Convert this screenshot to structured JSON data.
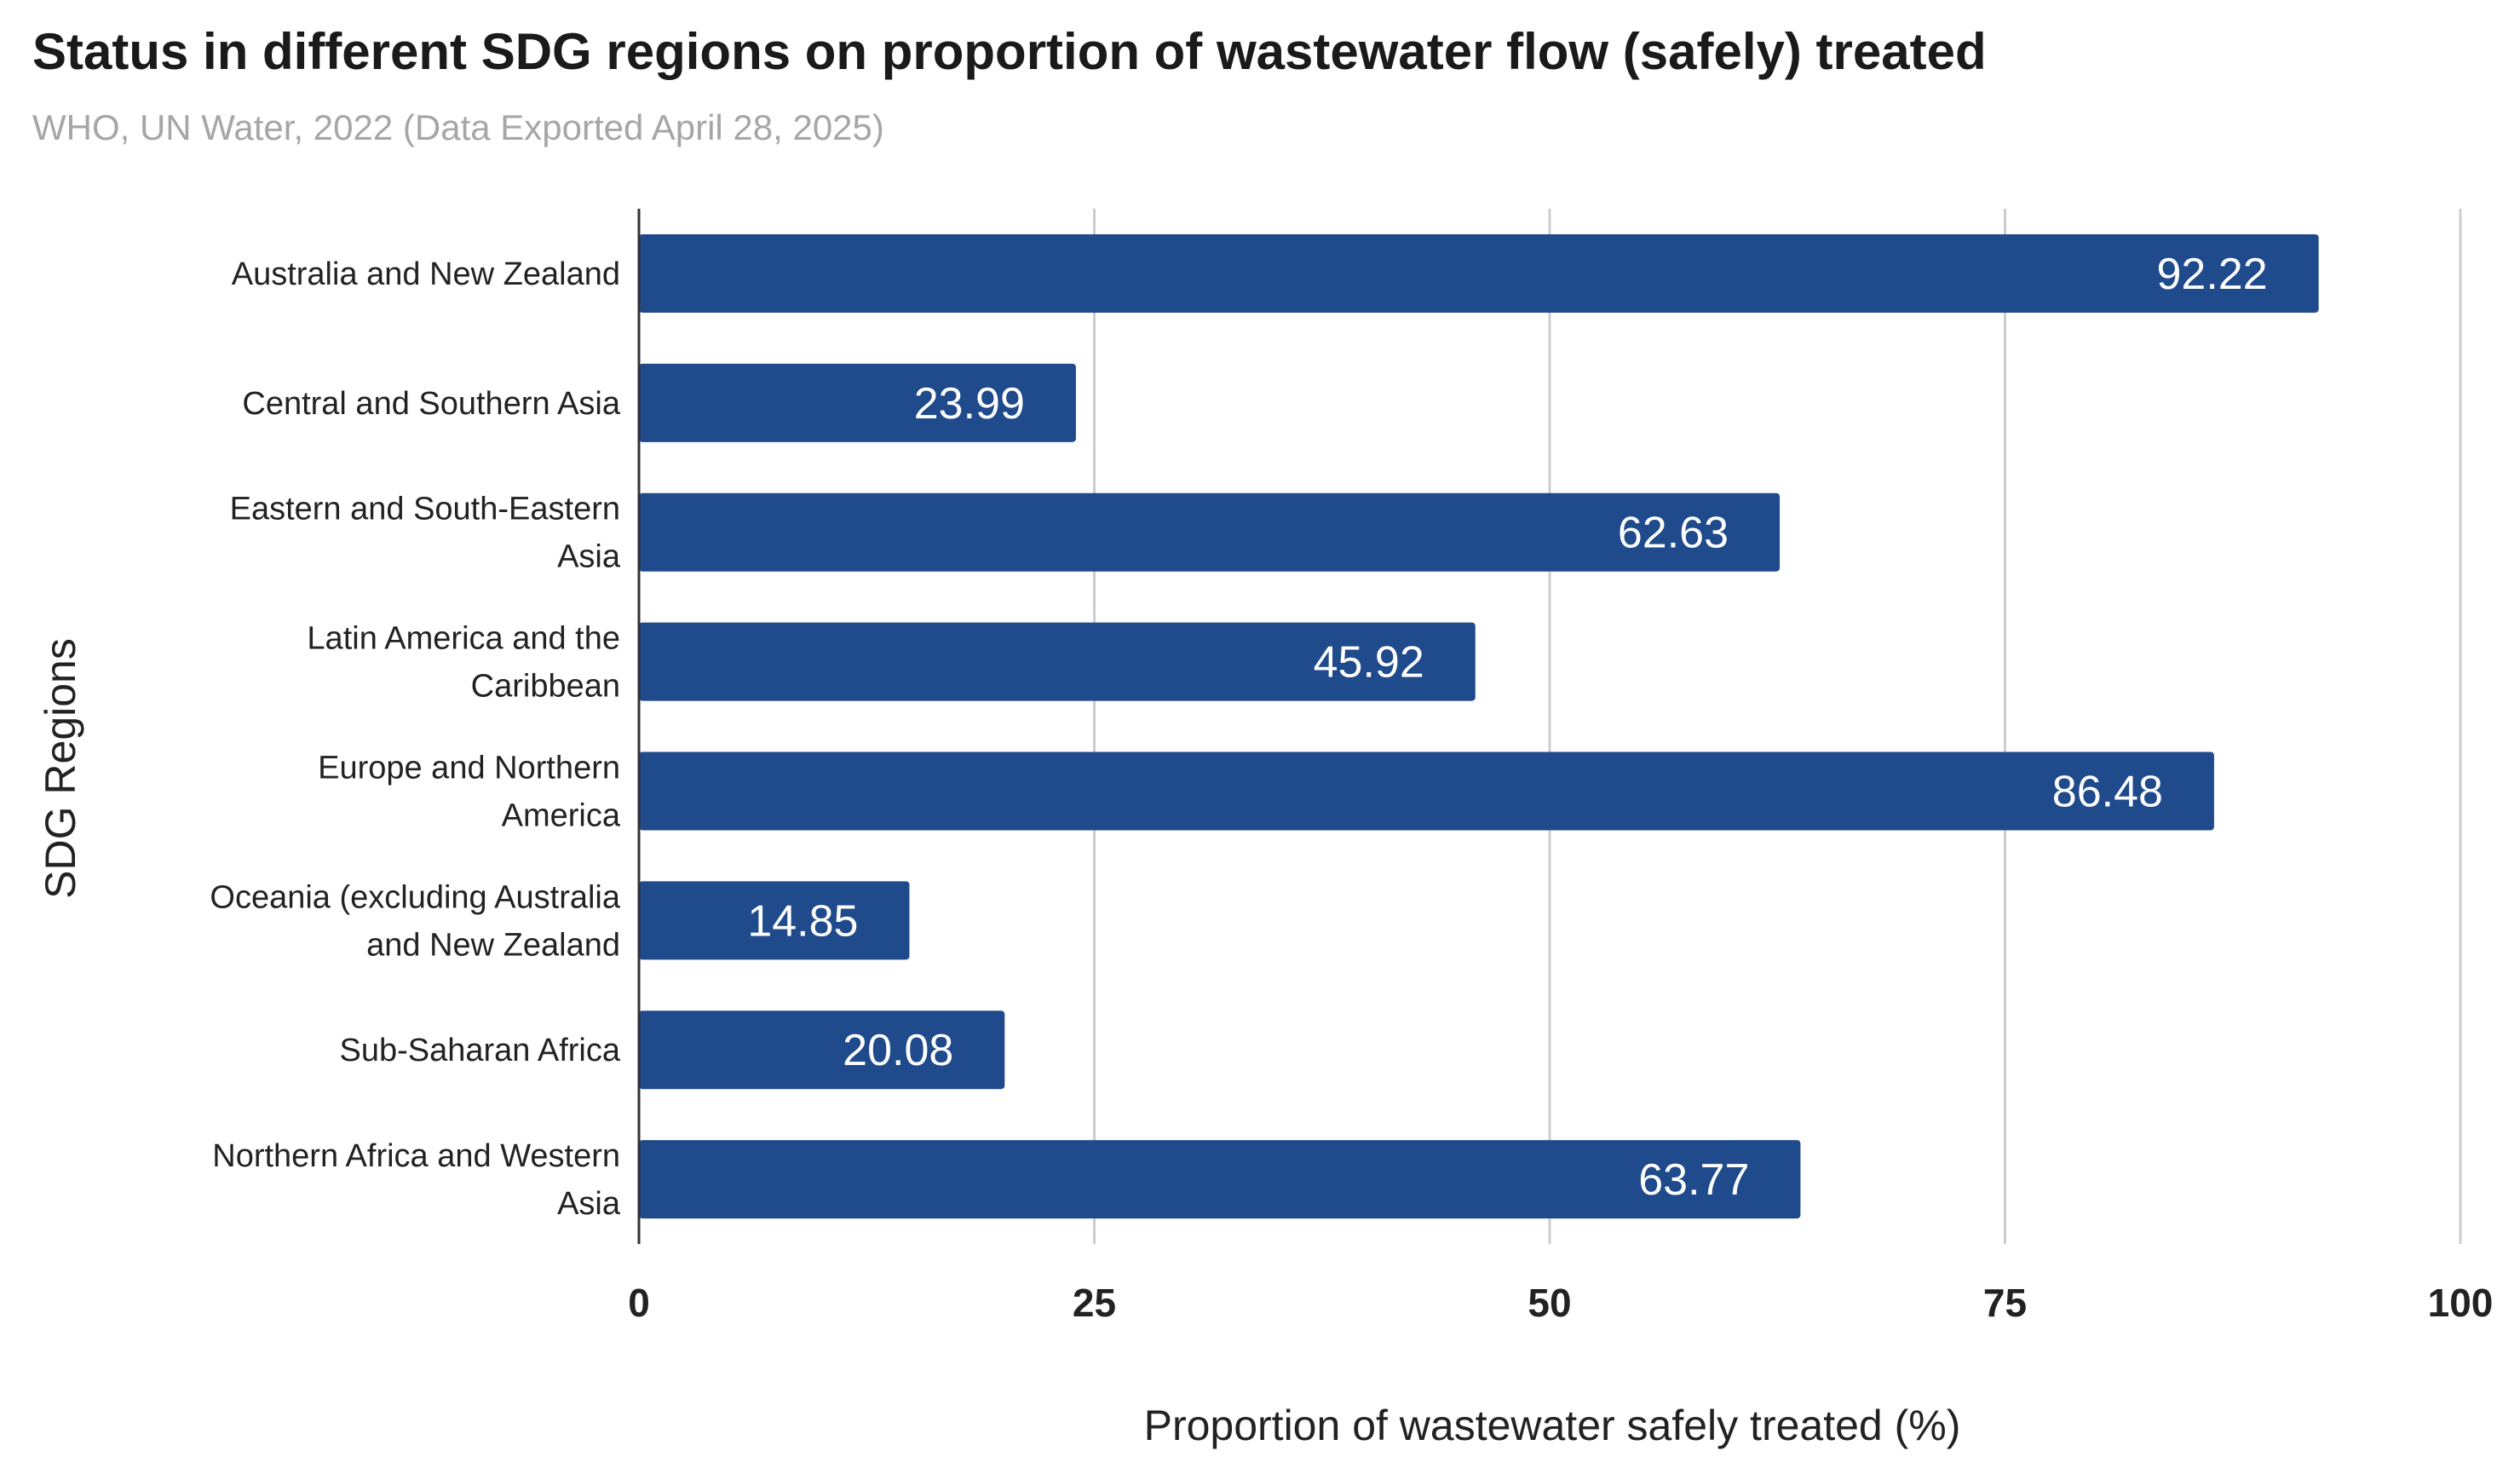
{
  "chart_data": {
    "type": "bar",
    "orientation": "horizontal",
    "title": "Status in different SDG regions on proportion of wastewater flow (safely) treated",
    "subtitle": "WHO, UN Water, 2022 (Data Exported April 28, 2025)",
    "xlabel": "Proportion of wastewater safely treated (%)",
    "ylabel": "SDG Regions",
    "xlim": [
      0,
      100
    ],
    "xticks": [
      "0",
      "25",
      "50",
      "75",
      "100"
    ],
    "grid": true,
    "bar_color": "#1f4a8c",
    "categories": [
      "Australia and New Zealand",
      "Central and Southern Asia",
      "Eastern and South-Eastern Asia",
      "Latin America and the Caribbean",
      "Europe and Northern America",
      "Oceania (excluding Australia and New Zealand",
      "Sub-Saharan Africa",
      "Northern Africa and Western Asia"
    ],
    "category_lines": [
      [
        "Australia and New Zealand"
      ],
      [
        "Central and Southern Asia"
      ],
      [
        "Eastern and South-Eastern",
        "Asia"
      ],
      [
        "Latin America and the",
        "Caribbean"
      ],
      [
        "Europe and Northern",
        "America"
      ],
      [
        "Oceania (excluding Australia",
        "and New Zealand"
      ],
      [
        "Sub-Saharan Africa"
      ],
      [
        "Northern Africa and Western",
        "Asia"
      ]
    ],
    "values": [
      92.22,
      23.99,
      62.63,
      45.92,
      86.48,
      14.85,
      20.08,
      63.77
    ],
    "data_labels": [
      "92.22",
      "23.99",
      "62.63",
      "45.92",
      "86.48",
      "14.85",
      "20.08",
      "63.77"
    ]
  }
}
